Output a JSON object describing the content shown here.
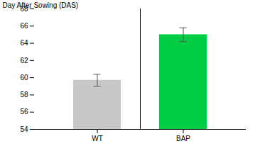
{
  "chart_data": {
    "type": "bar",
    "categories": [
      "WT",
      "BAP"
    ],
    "values": [
      59.7,
      65.0
    ],
    "errors": [
      0.7,
      0.8
    ],
    "colors": [
      "#c8c8c8",
      "#00cc44"
    ],
    "ylabel": "Day After Sowing (DAS)",
    "ylim": [
      54,
      68
    ],
    "yticks": [
      54,
      56,
      58,
      60,
      62,
      64,
      66,
      68
    ],
    "grid": false
  }
}
